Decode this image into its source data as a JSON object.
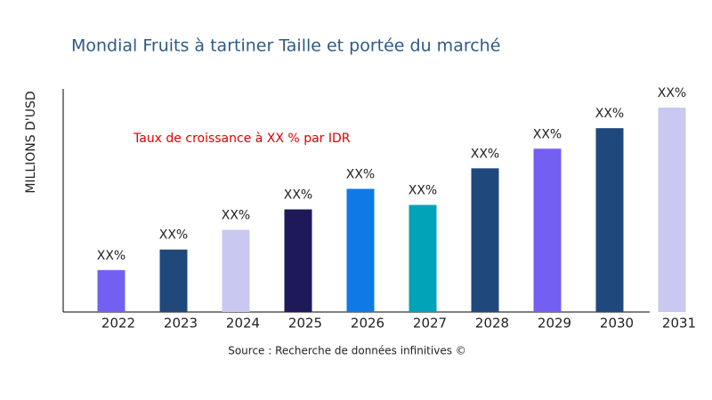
{
  "chart_data": {
    "type": "bar",
    "title": "Mondial Fruits à tartiner Taille et portée du marché",
    "y_label": "MILLIONS D'USD",
    "annotation": "Taux de croissance à XX % par IDR",
    "source": "Source : Recherche de données infinitives ©",
    "categories": [
      "2022",
      "2023",
      "2024",
      "2025",
      "2026",
      "2027",
      "2028",
      "2029",
      "2030",
      "2031"
    ],
    "values": [
      47,
      70,
      92,
      115,
      138,
      120,
      161,
      183,
      206,
      229
    ],
    "value_labels": [
      "XX%",
      "XX%",
      "XX%",
      "XX%",
      "XX%",
      "XX%",
      "XX%",
      "XX%",
      "XX%",
      "XX%"
    ],
    "colors": [
      "#7360f2",
      "#1f497d",
      "#c8c8f0",
      "#1e1a5a",
      "#0f7ae5",
      "#00a3b8",
      "#1f497d",
      "#7360f2",
      "#1f497d",
      "#c8c8f0"
    ],
    "ylim": [
      0,
      250
    ]
  }
}
